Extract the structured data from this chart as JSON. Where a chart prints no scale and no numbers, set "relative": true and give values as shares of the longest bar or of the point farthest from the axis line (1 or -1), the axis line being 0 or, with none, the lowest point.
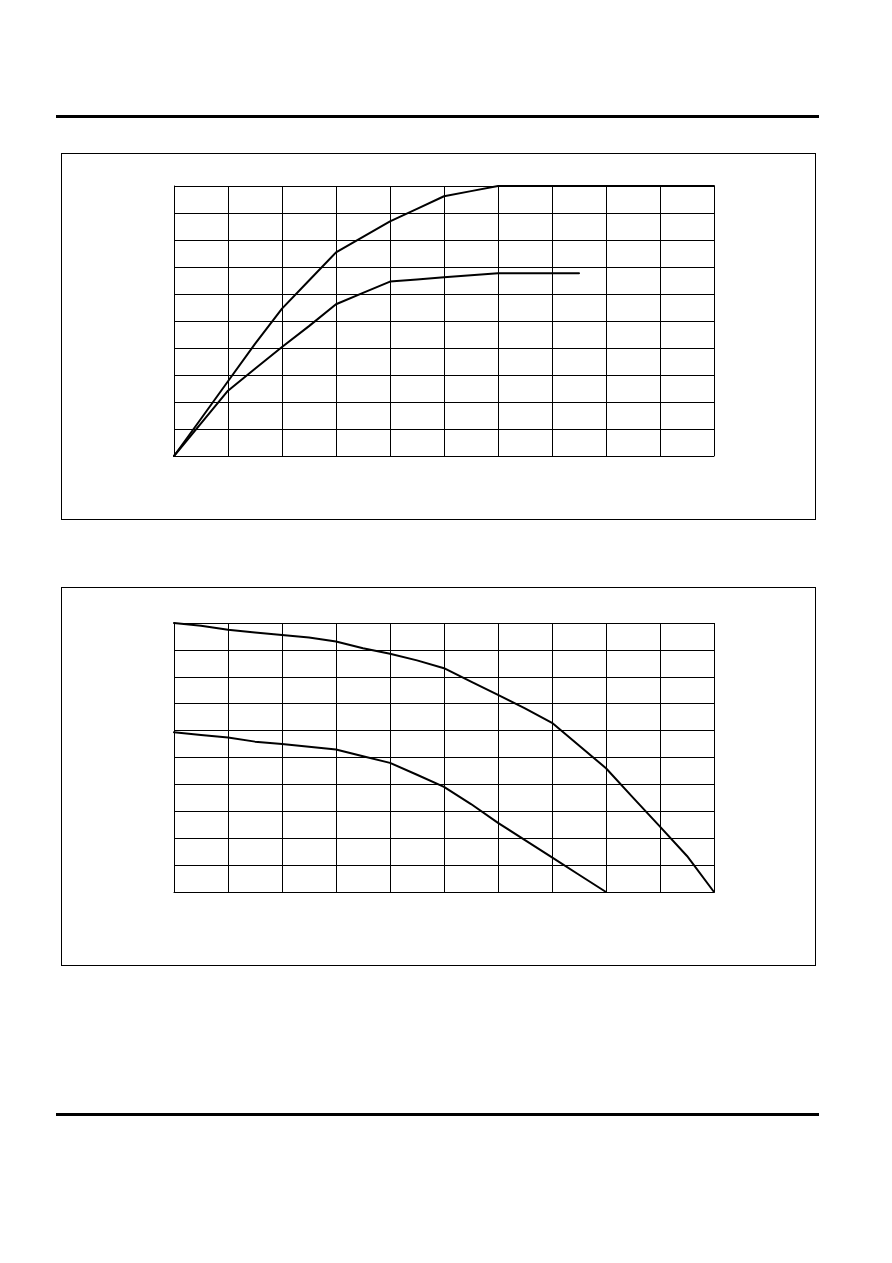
{
  "chart_data": [
    {
      "type": "line",
      "relative": true,
      "grid": true,
      "marker": "none",
      "line_style": "solid",
      "categories": [
        null,
        null,
        null,
        null,
        null,
        null,
        null,
        null,
        null,
        null,
        null,
        null,
        null,
        null,
        null,
        null,
        null,
        null,
        null,
        null,
        null
      ],
      "series": [
        {
          "color": "#000000",
          "values": [
            0,
            0.138,
            0.277,
            0.415,
            0.546,
            0.65,
            0.754,
            0.812,
            0.869,
            0.915,
            0.962,
            0.981,
            1,
            1,
            1,
            1,
            1,
            1,
            1,
            1,
            1
          ]
        },
        {
          "color": "#000000",
          "values": [
            0,
            0.121,
            0.242,
            0.323,
            0.404,
            0.481,
            0.562,
            0.604,
            0.646,
            0.654,
            0.662,
            0.669,
            0.677,
            0.677,
            0.677,
            0.677,
            null,
            null,
            null,
            null,
            null
          ]
        }
      ]
    },
    {
      "type": "line",
      "relative": true,
      "grid": true,
      "marker": "none",
      "line_style": "solid",
      "categories": [
        null,
        null,
        null,
        null,
        null,
        null,
        null,
        null,
        null,
        null,
        null,
        null,
        null,
        null,
        null,
        null,
        null,
        null,
        null,
        null,
        null
      ],
      "series": [
        {
          "color": "#000000",
          "values": [
            1,
            0.99,
            0.975,
            0.965,
            0.955,
            0.946,
            0.931,
            0.906,
            0.886,
            0.861,
            0.832,
            0.782,
            0.733,
            0.683,
            0.629,
            0.545,
            0.46,
            0.351,
            0.243,
            0.134,
            0
          ]
        },
        {
          "color": "#000000",
          "values": [
            0.594,
            0.584,
            0.574,
            0.559,
            0.55,
            0.54,
            0.53,
            0.505,
            0.48,
            0.436,
            0.391,
            0.327,
            0.257,
            0.193,
            0.129,
            0.064,
            0,
            null,
            null,
            null,
            null
          ]
        }
      ]
    }
  ]
}
